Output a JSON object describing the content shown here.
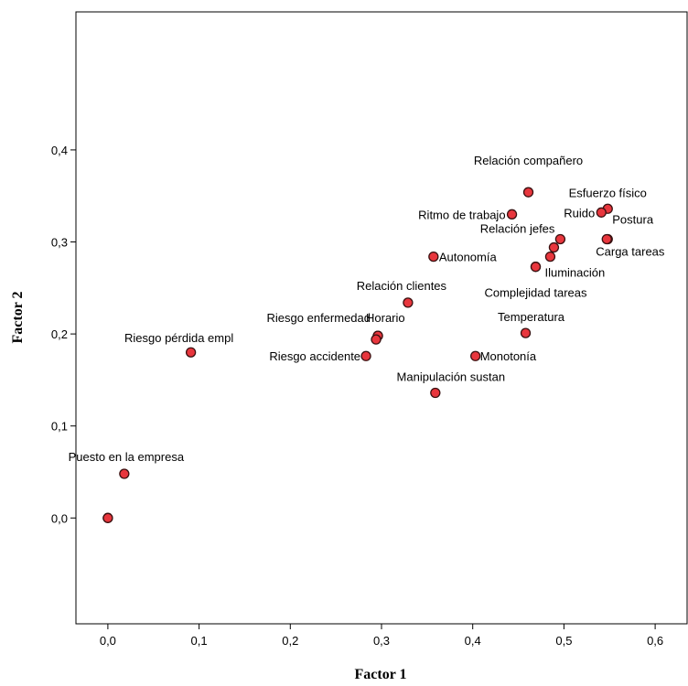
{
  "chart_data": {
    "type": "scatter",
    "xlabel": "Factor 1",
    "ylabel": "Factor 2",
    "xlim": [
      -0.035,
      0.635
    ],
    "ylim": [
      -0.115,
      0.55
    ],
    "xticks": [
      0.0,
      0.1,
      0.2,
      0.3,
      0.4,
      0.5,
      0.6
    ],
    "xtick_labels": [
      "0,0",
      "0,1",
      "0,2",
      "0,3",
      "0,4",
      "0,5",
      "0,6"
    ],
    "yticks": [
      0.0,
      0.1,
      0.2,
      0.3,
      0.4
    ],
    "ytick_labels": [
      "0,0",
      "0,1",
      "0,2",
      "0,3",
      "0,4"
    ],
    "grid": false,
    "marker_color": "#e8363d",
    "marker_edge_color": "#3a1010",
    "points": [
      {
        "label": "Relación compañero",
        "x": 0.461,
        "y": 0.354,
        "anchor": "middle",
        "ldx": 0,
        "ldy": -30
      },
      {
        "label": "Esfuerzo físico",
        "x": 0.548,
        "y": 0.336,
        "anchor": "middle",
        "ldx": 0,
        "ldy": -13
      },
      {
        "label": "Ritmo de trabajo",
        "x": 0.443,
        "y": 0.33,
        "anchor": "end",
        "ldx": -7,
        "ldy": 5
      },
      {
        "label": "Ruido",
        "x": 0.541,
        "y": 0.332,
        "anchor": "end",
        "ldx": -7,
        "ldy": 5
      },
      {
        "label": "Postura",
        "x": 0.548,
        "y": 0.303,
        "anchor": "start",
        "ldx": 5,
        "ldy": -17
      },
      {
        "label": "Relación jefes",
        "x": 0.496,
        "y": 0.303,
        "anchor": "end",
        "ldx": -6,
        "ldy": -7
      },
      {
        "label": "",
        "x": 0.489,
        "y": 0.294,
        "anchor": "start",
        "ldx": 0,
        "ldy": 0
      },
      {
        "label": "",
        "x": 0.485,
        "y": 0.284,
        "anchor": "start",
        "ldx": 0,
        "ldy": 0
      },
      {
        "label": "Autonomía",
        "x": 0.357,
        "y": 0.284,
        "anchor": "start",
        "ldx": 6,
        "ldy": 5
      },
      {
        "label": "Carga tareas",
        "x": 0.547,
        "y": 0.303,
        "anchor": "start",
        "ldx": -12,
        "ldy": 18
      },
      {
        "label": "Iluminación",
        "x": 0.469,
        "y": 0.273,
        "anchor": "start",
        "ldx": 10,
        "ldy": 11
      },
      {
        "label": "Complejidad tareas",
        "x": 0.469,
        "y": 0.273,
        "anchor": "middle",
        "ldx": 0,
        "ldy": 33
      },
      {
        "label": "Relación clientes",
        "x": 0.329,
        "y": 0.234,
        "anchor": "middle",
        "ldx": -7,
        "ldy": -14
      },
      {
        "label": "Temperatura",
        "x": 0.458,
        "y": 0.201,
        "anchor": "middle",
        "ldx": 6,
        "ldy": -13
      },
      {
        "label": "Riesgo enfermedad",
        "x": 0.296,
        "y": 0.198,
        "anchor": "end",
        "ldx": -8,
        "ldy": -15
      },
      {
        "label": "Horario",
        "x": 0.296,
        "y": 0.198,
        "anchor": "start",
        "ldx": -13,
        "ldy": -15
      },
      {
        "label": "",
        "x": 0.294,
        "y": 0.194,
        "anchor": "start",
        "ldx": 0,
        "ldy": 0
      },
      {
        "label": "Riesgo pérdida empl",
        "x": 0.091,
        "y": 0.18,
        "anchor": "middle",
        "ldx": -13,
        "ldy": -11
      },
      {
        "label": "Riesgo accidente",
        "x": 0.283,
        "y": 0.176,
        "anchor": "end",
        "ldx": -6,
        "ldy": 5
      },
      {
        "label": "Monotonía",
        "x": 0.403,
        "y": 0.176,
        "anchor": "start",
        "ldx": 5,
        "ldy": 5
      },
      {
        "label": "Manipulación sustan",
        "x": 0.359,
        "y": 0.136,
        "anchor": "middle",
        "ldx": 17,
        "ldy": -13
      },
      {
        "label": "Puesto en la empresa",
        "x": 0.018,
        "y": 0.048,
        "anchor": "middle",
        "ldx": 2,
        "ldy": -14
      },
      {
        "label": "",
        "x": 0.0,
        "y": 0.0,
        "anchor": "start",
        "ldx": 0,
        "ldy": 0
      },
      {
        "label": "",
        "x": 0.0,
        "y": 0.0,
        "anchor": "start",
        "ldx": 0,
        "ldy": 0
      }
    ]
  }
}
